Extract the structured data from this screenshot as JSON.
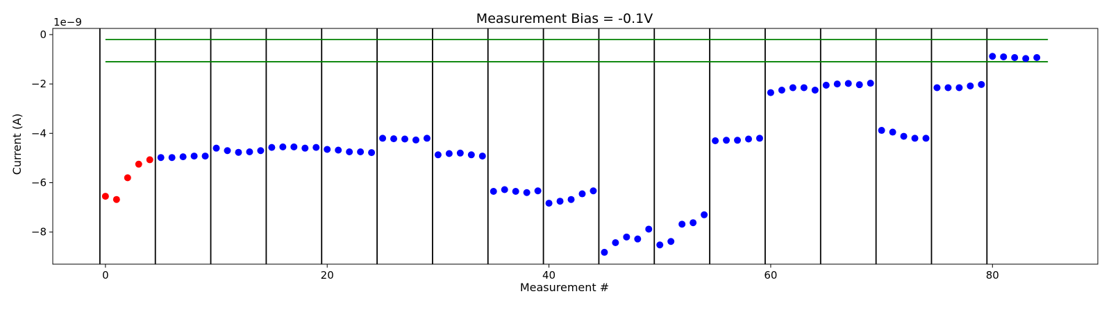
{
  "chart_data": {
    "type": "scatter",
    "title": "Measurement Bias = -0.1V",
    "xlabel": "Measurement #",
    "ylabel": "Current (A)",
    "y_offset_label": "1e−9",
    "xlim": [
      -4.75,
      89.5
    ],
    "ylim": [
      -9.3,
      0.25
    ],
    "y_scale_factor": 1e-09,
    "x_ticks": [
      0,
      20,
      40,
      60,
      80
    ],
    "x_tick_labels": [
      "0",
      "20",
      "40",
      "60",
      "80"
    ],
    "y_ticks": [
      0,
      -2,
      -4,
      -6,
      -8
    ],
    "y_tick_labels": [
      "0",
      "−2",
      "−4",
      "−6",
      "−8"
    ],
    "grid": false,
    "colors": {
      "first_group": "#ff0000",
      "points": "#0000ff",
      "threshold": "#008000",
      "dividers": "#000000"
    },
    "vertical_lines": [
      -0.5,
      4.5,
      9.5,
      14.5,
      19.5,
      24.5,
      29.5,
      34.5,
      39.5,
      44.5,
      49.5,
      54.5,
      59.5,
      64.5,
      69.5,
      74.5,
      79.5
    ],
    "horizontal_lines": [
      {
        "y": -0.2,
        "x_range": [
          0,
          85
        ],
        "color": "#008000"
      },
      {
        "y": -1.1,
        "x_range": [
          0,
          85
        ],
        "color": "#008000"
      }
    ],
    "series": [
      {
        "color": "#ff0000",
        "x": [
          0,
          1,
          2,
          3,
          4
        ],
        "y": [
          -6.55,
          -6.68,
          -5.8,
          -5.25,
          -5.07
        ]
      },
      {
        "color": "#0000ff",
        "x": [
          5,
          6,
          7,
          8,
          9,
          10,
          11,
          12,
          13,
          14,
          15,
          16,
          17,
          18,
          19,
          20,
          21,
          22,
          23,
          24,
          25,
          26,
          27,
          28,
          29,
          30,
          31,
          32,
          33,
          34,
          35,
          36,
          37,
          38,
          39,
          40,
          41,
          42,
          43,
          44,
          45,
          46,
          47,
          48,
          49,
          50,
          51,
          52,
          53,
          54,
          55,
          56,
          57,
          58,
          59,
          60,
          61,
          62,
          63,
          64,
          65,
          66,
          67,
          68,
          69,
          70,
          71,
          72,
          73,
          74,
          75,
          76,
          77,
          78,
          79,
          80,
          81,
          82,
          83,
          84
        ],
        "y": [
          -4.98,
          -4.98,
          -4.95,
          -4.92,
          -4.92,
          -4.6,
          -4.7,
          -4.77,
          -4.75,
          -4.7,
          -4.57,
          -4.55,
          -4.55,
          -4.6,
          -4.57,
          -4.65,
          -4.68,
          -4.75,
          -4.75,
          -4.78,
          -4.2,
          -4.22,
          -4.23,
          -4.27,
          -4.2,
          -4.87,
          -4.82,
          -4.8,
          -4.87,
          -4.92,
          -6.35,
          -6.28,
          -6.35,
          -6.4,
          -6.33,
          -6.83,
          -6.75,
          -6.68,
          -6.45,
          -6.33,
          -8.82,
          -8.43,
          -8.2,
          -8.28,
          -7.88,
          -8.52,
          -8.38,
          -7.68,
          -7.62,
          -7.3,
          -4.3,
          -4.28,
          -4.28,
          -4.23,
          -4.2,
          -2.35,
          -2.25,
          -2.15,
          -2.15,
          -2.25,
          -2.05,
          -2.0,
          -1.98,
          -2.03,
          -1.97,
          -3.88,
          -3.95,
          -4.12,
          -4.2,
          -4.2,
          -2.15,
          -2.15,
          -2.15,
          -2.08,
          -2.02,
          -0.88,
          -0.9,
          -0.93,
          -0.97,
          -0.93
        ]
      }
    ]
  }
}
